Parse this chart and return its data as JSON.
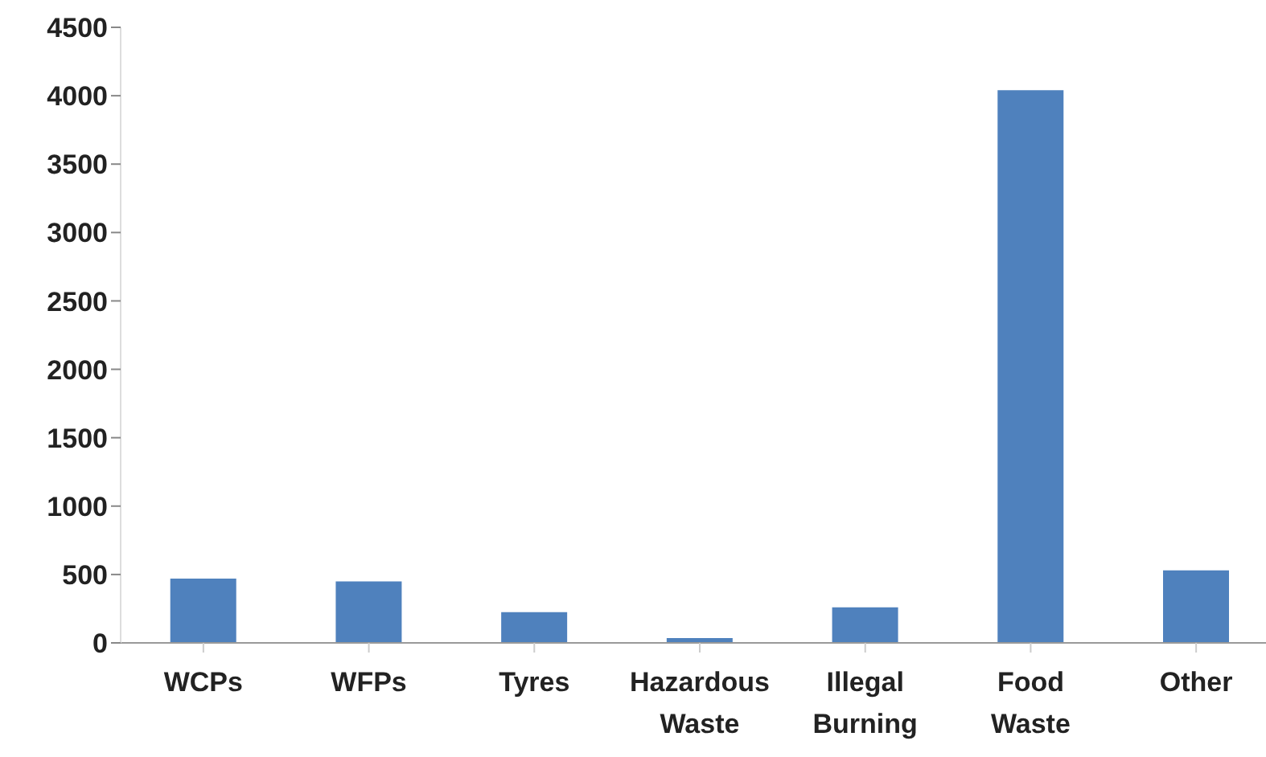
{
  "chart_data": {
    "type": "bar",
    "categories": [
      "WCPs",
      "WFPs",
      "Tyres",
      "Hazardous Waste",
      "Illegal Burning",
      "Food Waste",
      "Other"
    ],
    "values": [
      470,
      450,
      225,
      35,
      260,
      4040,
      530
    ],
    "color": "#4f81bd",
    "ylim": [
      0,
      4500
    ],
    "yticks": [
      0,
      500,
      1000,
      1500,
      2000,
      2500,
      3000,
      3500,
      4000,
      4500
    ],
    "grid": false,
    "legend": false
  }
}
